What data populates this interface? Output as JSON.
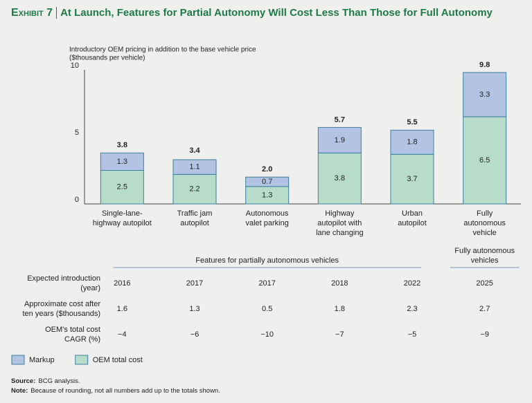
{
  "header": {
    "exhibit": "Exhibit 7",
    "title": "At Launch, Features for Partial Autonomy Will Cost Less Than Those for Full Autonomy"
  },
  "chart_data": {
    "type": "stacked_bar",
    "y_label": [
      "Introductory OEM pricing in addition to the base vehicle price",
      "($thousands per vehicle)"
    ],
    "categories": [
      [
        "Single-lane-",
        "highway autopilot"
      ],
      [
        "Traffic jam",
        "autopilot"
      ],
      [
        "Autonomous",
        "valet parking"
      ],
      [
        "Highway",
        "autopilot with",
        "lane changing"
      ],
      [
        "Urban",
        "autopilot"
      ],
      [
        "Fully",
        "autonomous",
        "vehicle"
      ]
    ],
    "series": [
      {
        "name": "Markup",
        "color": "#b3c3e3",
        "values": [
          1.3,
          1.1,
          0.7,
          1.9,
          1.8,
          3.3
        ]
      },
      {
        "name": "OEM total cost",
        "color": "#b7dcc9",
        "values": [
          2.5,
          2.2,
          1.3,
          3.8,
          3.7,
          6.5
        ]
      }
    ],
    "totals": {
      "values": [
        3.8,
        3.4,
        2,
        5.7,
        5.5,
        9.8
      ],
      "value_labels": [
        "3.8",
        "3.4",
        "2.0",
        "5.7",
        "5.5",
        "9.8"
      ]
    },
    "ylim": [
      0,
      10
    ],
    "yticks": [
      0,
      5,
      10
    ],
    "grid": false
  },
  "table": {
    "groups": [
      [
        "Features for partially autonomous vehicles"
      ],
      [
        "Fully autonomous",
        "vehicles"
      ]
    ],
    "rows": [
      {
        "label": [
          "Expected introduction",
          "(year)"
        ],
        "values": [
          2016,
          2017,
          2017,
          2018,
          2022,
          2025
        ]
      },
      {
        "label": [
          "Approximate cost after",
          "ten years ($thousands)"
        ],
        "values": [
          1.6,
          1.3,
          0.5,
          1.8,
          2.3,
          2.7
        ]
      },
      {
        "label": [
          "OEM’s total cost",
          "CAGR (%)"
        ],
        "values": [
          "−4",
          "−6",
          "−10",
          "−7",
          "−5",
          "−9"
        ]
      }
    ]
  },
  "notes": [
    {
      "label": "Source:",
      "text": "BCG analysis."
    },
    {
      "label": "Note:",
      "text": "Because of rounding, not all numbers add up to the totals shown."
    }
  ]
}
